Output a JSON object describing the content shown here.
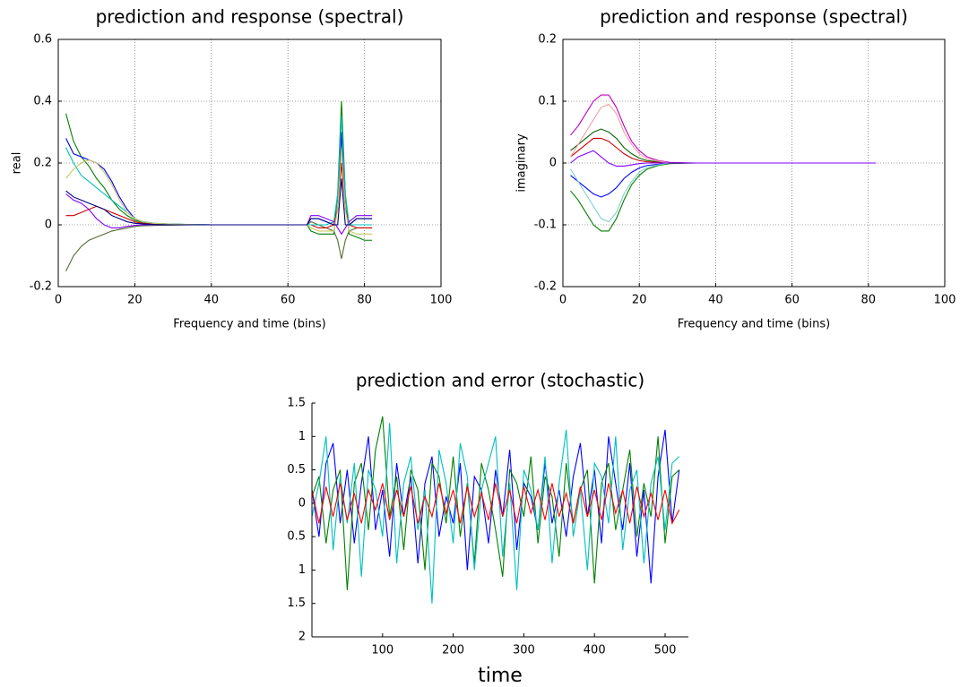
{
  "chart_data": [
    {
      "type": "line",
      "title": "prediction and response (spectral)",
      "xlabel": "Frequency and time (bins)",
      "ylabel": "real",
      "xlim": [
        0,
        100
      ],
      "ylim": [
        -0.2,
        0.6
      ],
      "xticks": [
        0,
        20,
        40,
        60,
        80,
        100
      ],
      "yticks": [
        -0.2,
        0,
        0.2,
        0.4,
        0.6
      ],
      "grid": true,
      "box": true,
      "x": [
        2,
        4,
        6,
        8,
        10,
        12,
        14,
        16,
        18,
        20,
        22,
        25,
        30,
        35,
        40,
        65,
        66,
        68,
        70,
        72,
        73,
        74,
        75,
        76,
        78,
        80,
        82
      ],
      "series": [
        {
          "color": "#008000",
          "values": [
            0.36,
            0.27,
            0.22,
            0.19,
            0.15,
            0.12,
            0.08,
            0.05,
            0.03,
            0.015,
            0.008,
            0.004,
            0.002,
            0.001,
            0,
            0,
            -0.02,
            -0.03,
            -0.03,
            -0.03,
            0.1,
            0.4,
            0.1,
            -0.03,
            -0.04,
            -0.05,
            -0.05
          ]
        },
        {
          "color": "#0000ff",
          "values": [
            0.28,
            0.23,
            0.22,
            0.21,
            0.2,
            0.18,
            0.14,
            0.09,
            0.05,
            0.02,
            0.01,
            0.005,
            0.002,
            0.001,
            0,
            0,
            0.02,
            0.02,
            0.01,
            0,
            0.05,
            0.3,
            0.05,
            0,
            0.02,
            0.02,
            0.02
          ]
        },
        {
          "color": "#556b2f",
          "values": [
            -0.15,
            -0.1,
            -0.07,
            -0.05,
            -0.04,
            -0.03,
            -0.02,
            -0.015,
            -0.01,
            -0.005,
            -0.003,
            -0.002,
            -0.001,
            0,
            0,
            0,
            0.01,
            0,
            -0.01,
            -0.02,
            -0.05,
            -0.11,
            -0.05,
            -0.02,
            -0.01,
            -0.01,
            -0.01
          ]
        },
        {
          "color": "#cc0000",
          "values": [
            0.03,
            0.03,
            0.04,
            0.05,
            0.06,
            0.05,
            0.04,
            0.03,
            0.02,
            0.01,
            0.005,
            0.002,
            0.001,
            0,
            0,
            0,
            0,
            -0.01,
            -0.01,
            0,
            0.05,
            0.2,
            0.05,
            0,
            -0.01,
            -0.01,
            -0.01
          ]
        },
        {
          "color": "#00bfbf",
          "values": [
            0.25,
            0.2,
            0.16,
            0.14,
            0.12,
            0.1,
            0.08,
            0.06,
            0.04,
            0.02,
            0.01,
            0.005,
            0.002,
            0.001,
            0,
            0,
            0,
            0,
            0,
            0.01,
            0.1,
            0.35,
            0.1,
            0,
            0,
            0,
            0
          ]
        },
        {
          "color": "#8000ff",
          "values": [
            0.1,
            0.08,
            0.07,
            0.05,
            0.02,
            0,
            -0.01,
            -0.01,
            -0.005,
            -0.002,
            0,
            0,
            0,
            0,
            0,
            0,
            0.03,
            0.03,
            0.02,
            0.01,
            -0.01,
            -0.03,
            -0.01,
            0.01,
            0.03,
            0.03,
            0.03
          ]
        },
        {
          "color": "#c8c864",
          "values": [
            0.15,
            0.18,
            0.2,
            0.21,
            0.2,
            0.17,
            0.13,
            0.08,
            0.04,
            0.02,
            0.01,
            0.005,
            0.002,
            0.001,
            0,
            0,
            -0.01,
            -0.02,
            -0.02,
            -0.02,
            0.05,
            0.25,
            0.05,
            -0.02,
            -0.03,
            -0.03,
            -0.03
          ]
        },
        {
          "color": "#000080",
          "values": [
            0.11,
            0.09,
            0.08,
            0.07,
            0.06,
            0.05,
            0.03,
            0.02,
            0.01,
            0.005,
            0.003,
            0.001,
            0,
            0,
            0,
            0,
            0.02,
            0.02,
            0.01,
            0,
            0,
            0.15,
            0,
            0,
            0.02,
            0.02,
            0.02
          ]
        }
      ]
    },
    {
      "type": "line",
      "title": "prediction and response (spectral)",
      "xlabel": "Frequency and time (bins)",
      "ylabel": "imaginary",
      "xlim": [
        0,
        100
      ],
      "ylim": [
        -0.2,
        0.2
      ],
      "xticks": [
        0,
        20,
        40,
        60,
        80,
        100
      ],
      "yticks": [
        -0.2,
        -0.1,
        0,
        0.1,
        0.2
      ],
      "grid": true,
      "box": true,
      "x": [
        2,
        4,
        6,
        8,
        10,
        12,
        14,
        16,
        18,
        20,
        22,
        25,
        28,
        35,
        40,
        50,
        65,
        82
      ],
      "series": [
        {
          "color": "#c000c0",
          "values": [
            0.045,
            0.06,
            0.08,
            0.1,
            0.11,
            0.11,
            0.09,
            0.06,
            0.035,
            0.02,
            0.01,
            0.004,
            0.001,
            0,
            0,
            0,
            0,
            0
          ]
        },
        {
          "color": "#008000",
          "values": [
            -0.045,
            -0.06,
            -0.08,
            -0.1,
            -0.11,
            -0.11,
            -0.09,
            -0.06,
            -0.035,
            -0.02,
            -0.01,
            -0.004,
            -0.001,
            0,
            0,
            0,
            0,
            0
          ]
        },
        {
          "color": "#006400",
          "values": [
            0.02,
            0.03,
            0.04,
            0.05,
            0.055,
            0.05,
            0.04,
            0.025,
            0.015,
            0.008,
            0.004,
            0.002,
            0,
            0,
            0,
            0,
            0,
            0
          ]
        },
        {
          "color": "#0000ff",
          "values": [
            -0.02,
            -0.03,
            -0.04,
            -0.05,
            -0.055,
            -0.05,
            -0.04,
            -0.025,
            -0.015,
            -0.008,
            -0.004,
            -0.002,
            0,
            0,
            0,
            0,
            0,
            0
          ]
        },
        {
          "color": "#cc0000",
          "values": [
            0.01,
            0.02,
            0.03,
            0.04,
            0.04,
            0.035,
            0.025,
            0.015,
            0.008,
            0.004,
            0.002,
            0.001,
            0,
            0,
            0,
            0,
            0,
            0
          ]
        },
        {
          "color": "#80d0d0",
          "values": [
            -0.01,
            -0.03,
            -0.05,
            -0.07,
            -0.09,
            -0.095,
            -0.08,
            -0.05,
            -0.03,
            -0.015,
            -0.007,
            -0.003,
            0,
            0,
            0,
            0,
            0,
            0
          ]
        },
        {
          "color": "#f0a0a0",
          "values": [
            0.01,
            0.03,
            0.05,
            0.07,
            0.09,
            0.095,
            0.08,
            0.05,
            0.03,
            0.015,
            0.007,
            0.003,
            0,
            0,
            0,
            0,
            0,
            0
          ]
        },
        {
          "color": "#8000ff",
          "values": [
            0,
            0.01,
            0.015,
            0.02,
            0.01,
            0,
            -0.005,
            -0.005,
            -0.003,
            -0.001,
            0,
            0,
            0,
            0,
            0,
            0,
            0,
            0
          ]
        }
      ]
    },
    {
      "type": "line",
      "title": "prediction and error (stochastic)",
      "xlabel": "time",
      "xlim": [
        0,
        533
      ],
      "ylim": [
        -2,
        1.5
      ],
      "xticks": [
        100,
        200,
        300,
        400,
        500
      ],
      "yticks": [
        {
          "value": -2,
          "label": "2"
        },
        {
          "value": -1.5,
          "label": "1.5"
        },
        {
          "value": -1,
          "label": "1"
        },
        {
          "value": -0.5,
          "label": "0.5"
        },
        0,
        0.5,
        1,
        1.5
      ],
      "grid": false,
      "box": false,
      "x": [
        0,
        10,
        20,
        30,
        40,
        50,
        60,
        70,
        80,
        90,
        100,
        110,
        120,
        130,
        140,
        150,
        160,
        170,
        180,
        190,
        200,
        210,
        220,
        230,
        240,
        250,
        260,
        270,
        280,
        290,
        300,
        310,
        320,
        330,
        340,
        350,
        360,
        370,
        380,
        390,
        400,
        410,
        420,
        430,
        440,
        450,
        460,
        470,
        480,
        490,
        500,
        510,
        520
      ],
      "series": [
        {
          "color": "#0000ff",
          "values": [
            0.2,
            -0.5,
            0.6,
            0.9,
            -0.3,
            0.5,
            -0.6,
            0.3,
            1.0,
            -0.4,
            0.2,
            -0.8,
            0.6,
            -0.2,
            0.4,
            -0.9,
            0.3,
            0.7,
            -0.5,
            0.1,
            -0.3,
            0.6,
            -1.0,
            0.4,
            0.2,
            -0.6,
            0.5,
            -0.2,
            0.8,
            -0.7,
            0.3,
            0.1,
            -0.4,
            0.6,
            -0.3,
            0.2,
            -0.5,
            0.4,
            0.9,
            -0.2,
            0.5,
            -0.6,
            1.0,
            0.3,
            -0.4,
            0.6,
            -0.8,
            0.2,
            -1.2,
            0.4,
            1.1,
            -0.3,
            0.5
          ]
        },
        {
          "color": "#008000",
          "values": [
            0.1,
            0.4,
            -0.6,
            0.2,
            0.5,
            -1.3,
            0.3,
            0.6,
            -0.4,
            0.8,
            1.3,
            -0.2,
            0.4,
            -0.7,
            0.5,
            0.2,
            -1.0,
            0.6,
            0.4,
            -0.3,
            0.7,
            -0.5,
            0.3,
            -0.9,
            0.6,
            0.2,
            -0.4,
            -1.1,
            0.5,
            0.3,
            -0.2,
            0.7,
            -0.6,
            0.4,
            0.1,
            -0.8,
            0.6,
            -0.3,
            0.2,
            0.5,
            -1.2,
            0.3,
            0.6,
            -0.4,
            0.2,
            0.8,
            -0.5,
            0.3,
            -0.2,
            1.0,
            -0.6,
            0.4,
            0.5
          ]
        },
        {
          "color": "#00bfbf",
          "values": [
            -0.2,
            0.3,
            1.0,
            -0.7,
            0.4,
            -0.3,
            0.6,
            -1.1,
            0.5,
            0.2,
            -0.5,
            1.2,
            -0.9,
            0.3,
            0.7,
            -0.4,
            0.2,
            -1.5,
            0.8,
            0.3,
            -0.6,
            0.9,
            0.4,
            -1.0,
            0.2,
            0.6,
            1.0,
            -0.8,
            0.3,
            -1.3,
            0.5,
            0.2,
            -0.4,
            0.7,
            -0.9,
            0.3,
            1.1,
            -0.5,
            0.2,
            -1.0,
            0.6,
            0.4,
            -0.3,
            1.0,
            -0.7,
            0.2,
            0.5,
            -0.9,
            0.3,
            0.7,
            -0.4,
            0.6,
            0.7
          ]
        },
        {
          "color": "#ff0000",
          "values": [
            0.2,
            -0.3,
            0.25,
            -0.2,
            0.3,
            -0.25,
            0.15,
            -0.3,
            0.2,
            -0.1,
            0.3,
            -0.25,
            0.2,
            -0.2,
            0.25,
            -0.3,
            0.1,
            -0.2,
            0.3,
            -0.15,
            0.2,
            -0.3,
            0.25,
            -0.2,
            0.15,
            -0.25,
            0.3,
            -0.2,
            0.2,
            -0.3,
            0.25,
            -0.15,
            0.2,
            -0.25,
            0.3,
            -0.2,
            0.15,
            -0.3,
            0.25,
            -0.2,
            0.2,
            -0.25,
            0.3,
            -0.15,
            0.2,
            -0.3,
            0.25,
            -0.2,
            0.15,
            -0.25,
            0.2,
            -0.3,
            -0.1
          ]
        }
      ]
    }
  ]
}
